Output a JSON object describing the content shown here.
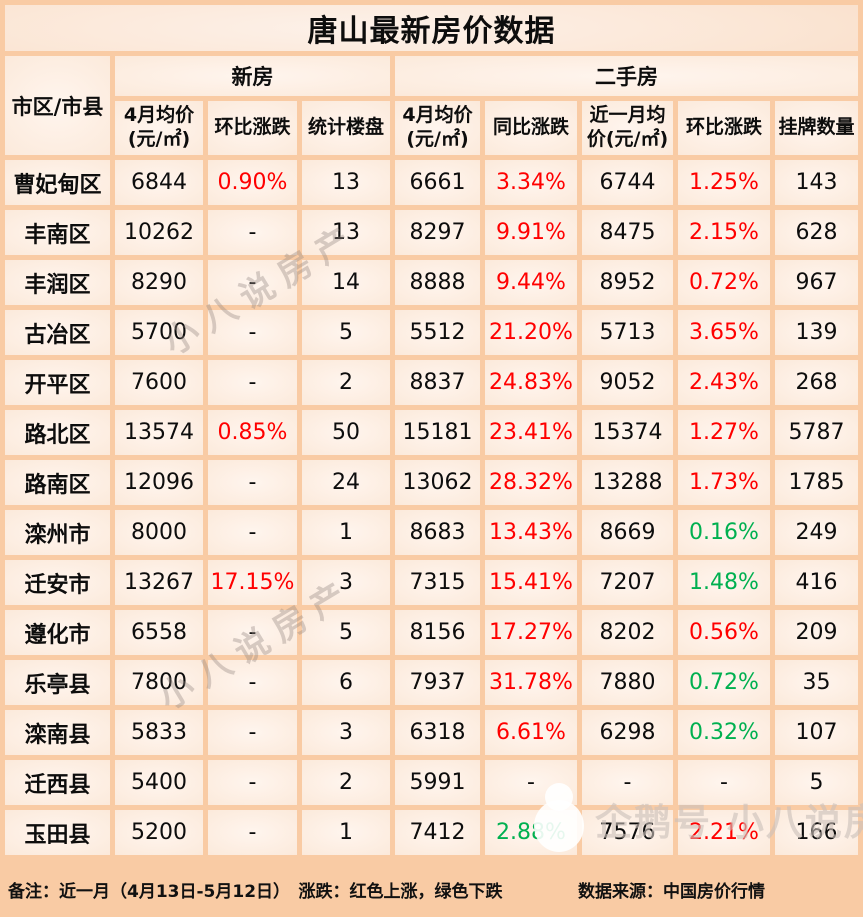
{
  "title": "唐山最新房价数据",
  "chart_data": {
    "type": "table",
    "title": "唐山最新房价数据",
    "corner_header": "市区/市县",
    "group_headers": [
      {
        "label": "新房",
        "span": 3
      },
      {
        "label": "二手房",
        "span": 5
      }
    ],
    "column_headers": [
      "4月均价(元/㎡)",
      "环比涨跌",
      "统计楼盘",
      "4月均价(元/㎡)",
      "同比涨跌",
      "近一月均价(元/㎡)",
      "环比涨跌",
      "挂牌数量"
    ],
    "trend_colors": {
      "up": "#ff0000",
      "down": "#00b050"
    },
    "rows": [
      {
        "name": "曹妃甸区",
        "cells": [
          {
            "v": "6844"
          },
          {
            "v": "0.90%",
            "trend": "up"
          },
          {
            "v": "13"
          },
          {
            "v": "6661"
          },
          {
            "v": "3.34%",
            "trend": "up"
          },
          {
            "v": "6744"
          },
          {
            "v": "1.25%",
            "trend": "up"
          },
          {
            "v": "143"
          }
        ]
      },
      {
        "name": "丰南区",
        "cells": [
          {
            "v": "10262"
          },
          {
            "v": "-"
          },
          {
            "v": "13"
          },
          {
            "v": "8297"
          },
          {
            "v": "9.91%",
            "trend": "up"
          },
          {
            "v": "8475"
          },
          {
            "v": "2.15%",
            "trend": "up"
          },
          {
            "v": "628"
          }
        ]
      },
      {
        "name": "丰润区",
        "cells": [
          {
            "v": "8290"
          },
          {
            "v": "-"
          },
          {
            "v": "14"
          },
          {
            "v": "8888"
          },
          {
            "v": "9.44%",
            "trend": "up"
          },
          {
            "v": "8952"
          },
          {
            "v": "0.72%",
            "trend": "up"
          },
          {
            "v": "967"
          }
        ]
      },
      {
        "name": "古冶区",
        "cells": [
          {
            "v": "5700"
          },
          {
            "v": "-"
          },
          {
            "v": "5"
          },
          {
            "v": "5512"
          },
          {
            "v": "21.20%",
            "trend": "up"
          },
          {
            "v": "5713"
          },
          {
            "v": "3.65%",
            "trend": "up"
          },
          {
            "v": "139"
          }
        ]
      },
      {
        "name": "开平区",
        "cells": [
          {
            "v": "7600"
          },
          {
            "v": "-"
          },
          {
            "v": "2"
          },
          {
            "v": "8837"
          },
          {
            "v": "24.83%",
            "trend": "up"
          },
          {
            "v": "9052"
          },
          {
            "v": "2.43%",
            "trend": "up"
          },
          {
            "v": "268"
          }
        ]
      },
      {
        "name": "路北区",
        "cells": [
          {
            "v": "13574"
          },
          {
            "v": "0.85%",
            "trend": "up"
          },
          {
            "v": "50"
          },
          {
            "v": "15181"
          },
          {
            "v": "23.41%",
            "trend": "up"
          },
          {
            "v": "15374"
          },
          {
            "v": "1.27%",
            "trend": "up"
          },
          {
            "v": "5787"
          }
        ]
      },
      {
        "name": "路南区",
        "cells": [
          {
            "v": "12096"
          },
          {
            "v": "-"
          },
          {
            "v": "24"
          },
          {
            "v": "13062"
          },
          {
            "v": "28.32%",
            "trend": "up"
          },
          {
            "v": "13288"
          },
          {
            "v": "1.73%",
            "trend": "up"
          },
          {
            "v": "1785"
          }
        ]
      },
      {
        "name": "滦州市",
        "cells": [
          {
            "v": "8000"
          },
          {
            "v": "-"
          },
          {
            "v": "1"
          },
          {
            "v": "8683"
          },
          {
            "v": "13.43%",
            "trend": "up"
          },
          {
            "v": "8669"
          },
          {
            "v": "0.16%",
            "trend": "down"
          },
          {
            "v": "249"
          }
        ]
      },
      {
        "name": "迁安市",
        "cells": [
          {
            "v": "13267"
          },
          {
            "v": "17.15%",
            "trend": "up"
          },
          {
            "v": "3"
          },
          {
            "v": "7315"
          },
          {
            "v": "15.41%",
            "trend": "up"
          },
          {
            "v": "7207"
          },
          {
            "v": "1.48%",
            "trend": "down"
          },
          {
            "v": "416"
          }
        ]
      },
      {
        "name": "遵化市",
        "cells": [
          {
            "v": "6558"
          },
          {
            "v": "-"
          },
          {
            "v": "5"
          },
          {
            "v": "8156"
          },
          {
            "v": "17.27%",
            "trend": "up"
          },
          {
            "v": "8202"
          },
          {
            "v": "0.56%",
            "trend": "up"
          },
          {
            "v": "209"
          }
        ]
      },
      {
        "name": "乐亭县",
        "cells": [
          {
            "v": "7800"
          },
          {
            "v": "-"
          },
          {
            "v": "6"
          },
          {
            "v": "7937"
          },
          {
            "v": "31.78%",
            "trend": "up"
          },
          {
            "v": "7880"
          },
          {
            "v": "0.72%",
            "trend": "down"
          },
          {
            "v": "35"
          }
        ]
      },
      {
        "name": "滦南县",
        "cells": [
          {
            "v": "5833"
          },
          {
            "v": "-"
          },
          {
            "v": "3"
          },
          {
            "v": "6318"
          },
          {
            "v": "6.61%",
            "trend": "up"
          },
          {
            "v": "6298"
          },
          {
            "v": "0.32%",
            "trend": "down"
          },
          {
            "v": "107"
          }
        ]
      },
      {
        "name": "迁西县",
        "cells": [
          {
            "v": "5400"
          },
          {
            "v": "-"
          },
          {
            "v": "2"
          },
          {
            "v": "5991"
          },
          {
            "v": "-"
          },
          {
            "v": "-"
          },
          {
            "v": "-"
          },
          {
            "v": "5"
          }
        ]
      },
      {
        "name": "玉田县",
        "cells": [
          {
            "v": "5200"
          },
          {
            "v": "-"
          },
          {
            "v": "1"
          },
          {
            "v": "7412"
          },
          {
            "v": "2.88%",
            "trend": "down"
          },
          {
            "v": "7576"
          },
          {
            "v": "2.21%",
            "trend": "up"
          },
          {
            "v": "166"
          }
        ]
      }
    ]
  },
  "footer": {
    "note": "备注：近一月（4月13日-5月12日）　涨跌：红色上涨，绿色下跌",
    "source": "数据来源：中国房价行情"
  },
  "watermarks": {
    "diagonal": "小八说房产",
    "corner": "企鹅号 小八说房产"
  }
}
